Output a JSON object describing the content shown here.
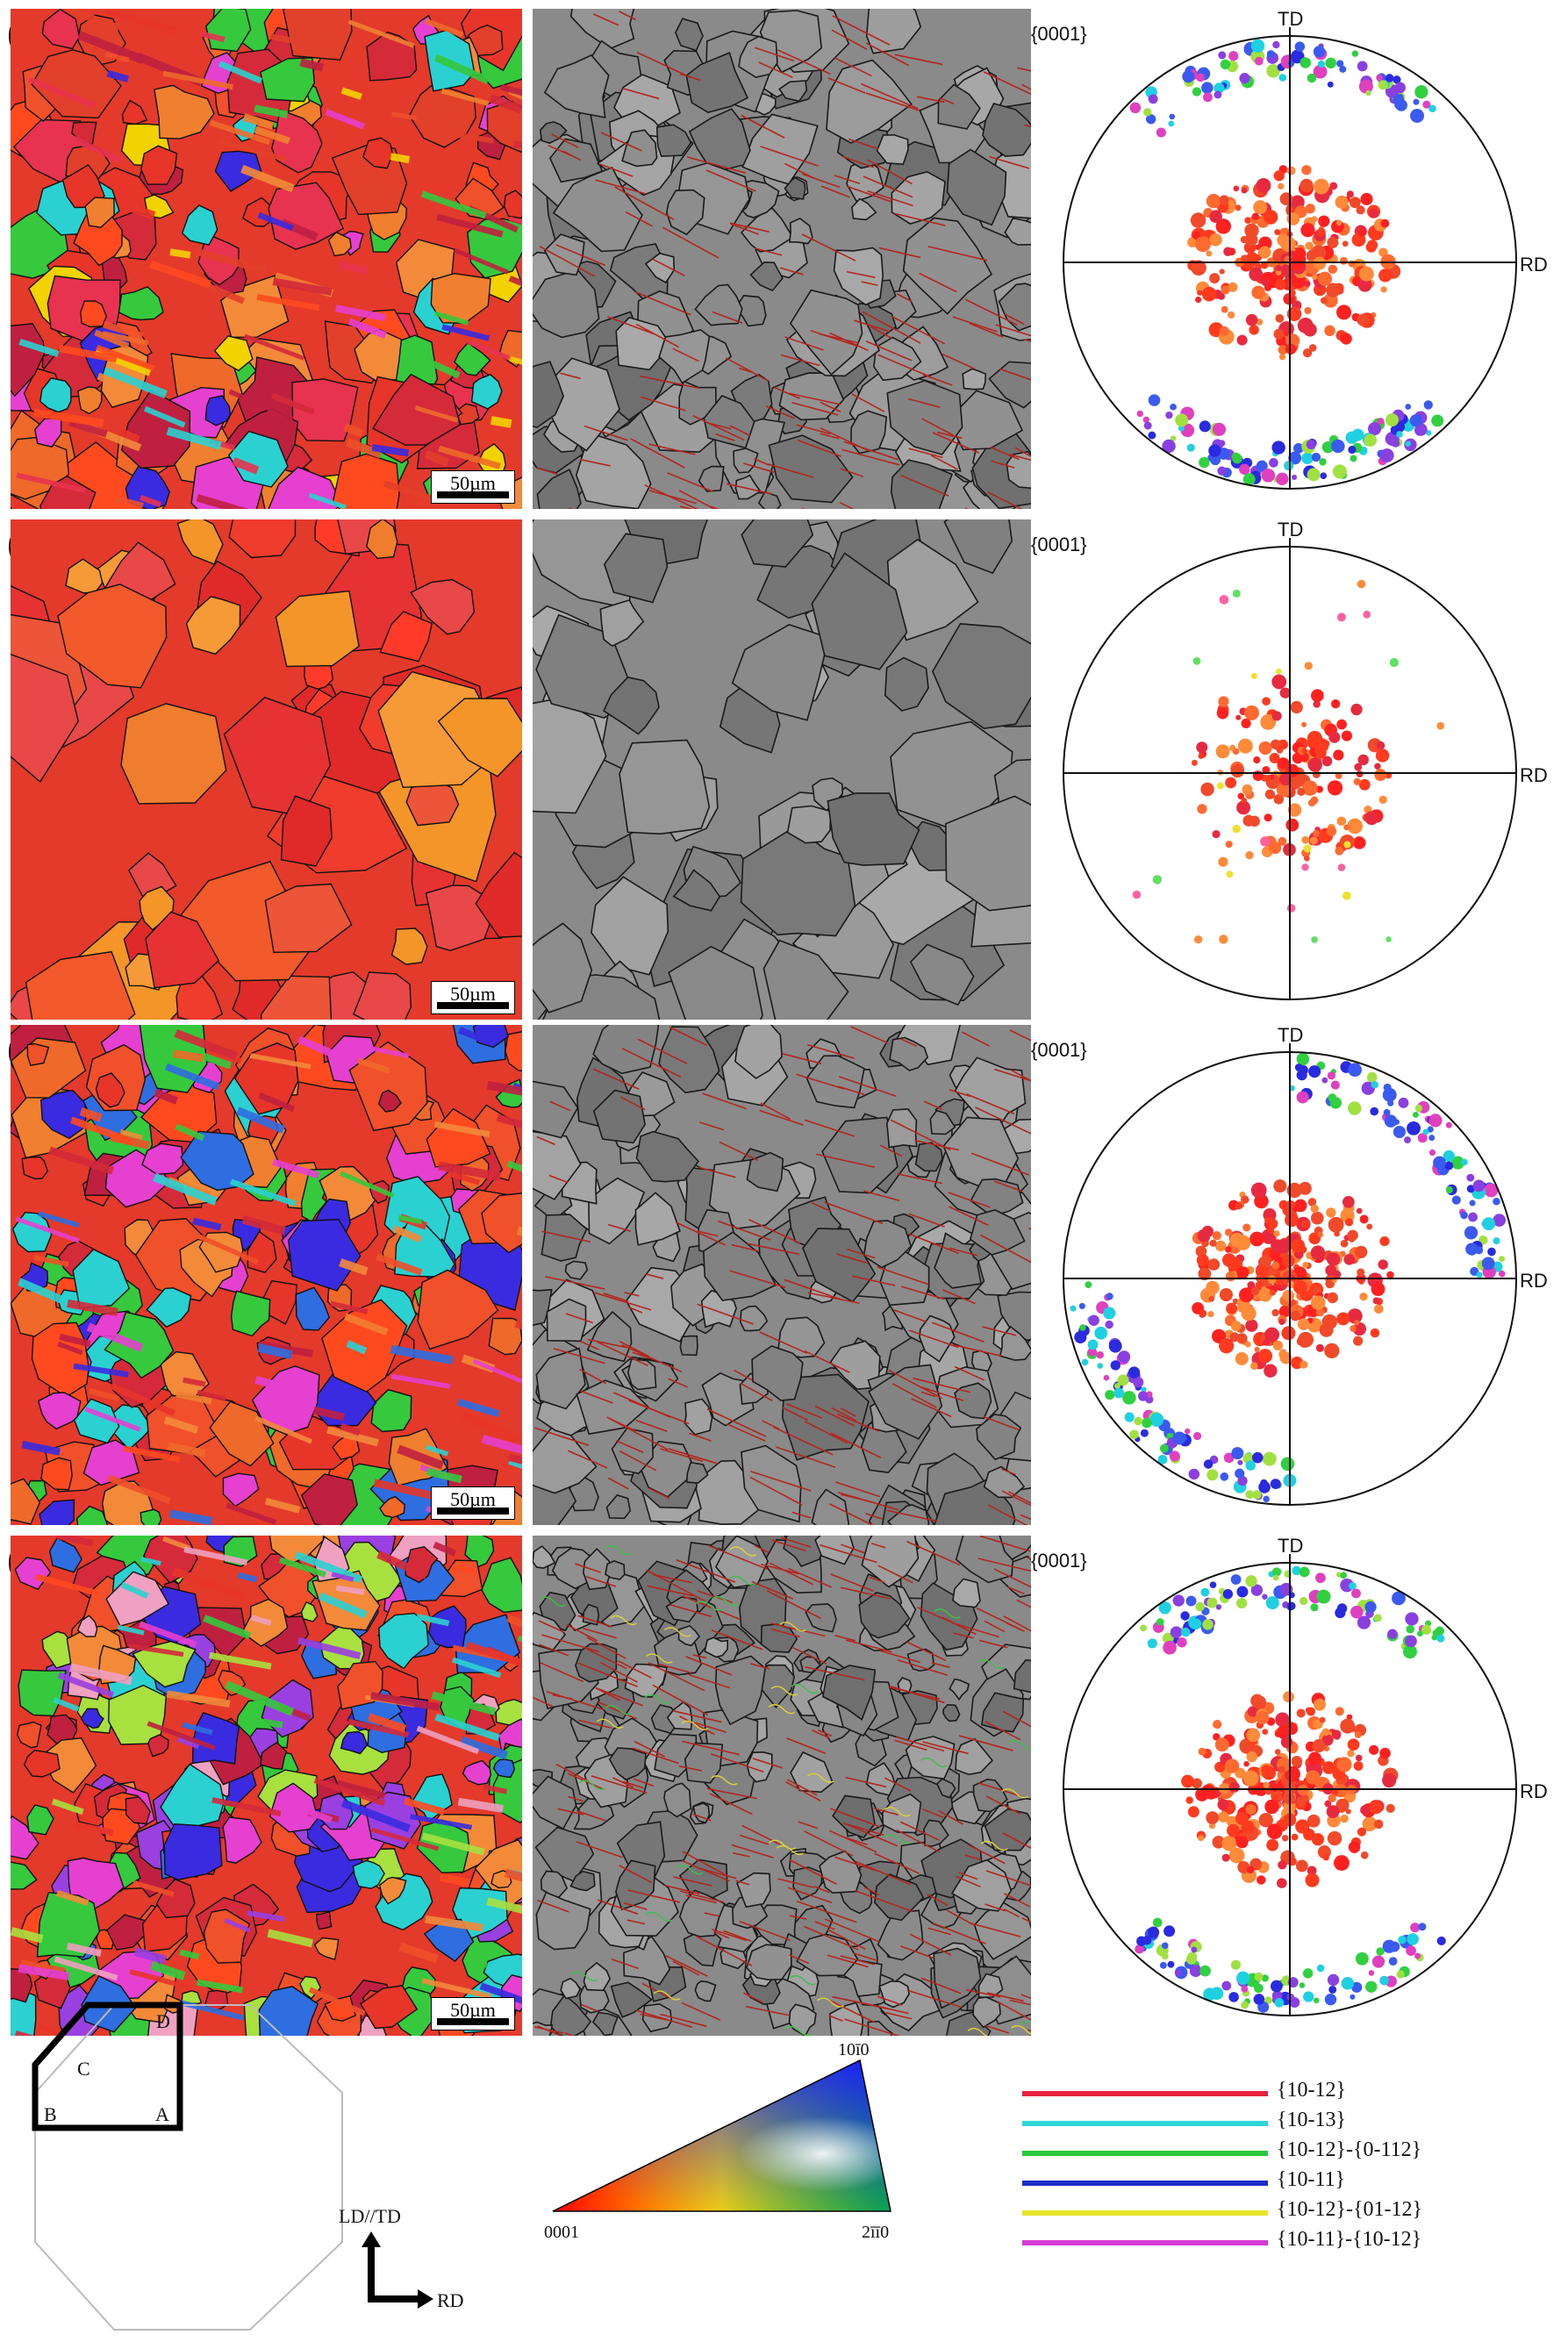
{
  "panels": [
    {
      "label": "(a)",
      "scale": "50µm",
      "pole": "{0001}",
      "td": "TD",
      "rd": "RD"
    },
    {
      "label": "(b)",
      "scale": "50µm",
      "pole": "{0001}",
      "td": "TD",
      "rd": "RD"
    },
    {
      "label": "(c)",
      "scale": "50µm",
      "pole": "{0001}",
      "td": "TD",
      "rd": "RD"
    },
    {
      "label": "(d)",
      "scale": "50µm",
      "pole": "{0001}",
      "td": "TD",
      "rd": "RD"
    }
  ],
  "schematic": {
    "corners": [
      "D",
      "C",
      "B",
      "A"
    ],
    "axis_up": "LD//TD",
    "axis_right": "RD"
  },
  "ipf_key": {
    "corner_0001": "0001",
    "corner_10m10": "10ī0",
    "corner_2m1m10": "2īī0"
  },
  "twin_legend": [
    {
      "label": "{10-12}",
      "color": "#e8213f"
    },
    {
      "label": "{10-13}",
      "color": "#2fd6d6"
    },
    {
      "label": "{10-12}-{0-112}",
      "color": "#27c83b"
    },
    {
      "label": "{10-11}",
      "color": "#1f2bc9"
    },
    {
      "label": "{10-12}-{01-12}",
      "color": "#e8e42a"
    },
    {
      "label": "{10-11}-{10-12}",
      "color": "#d63ad6"
    }
  ]
}
